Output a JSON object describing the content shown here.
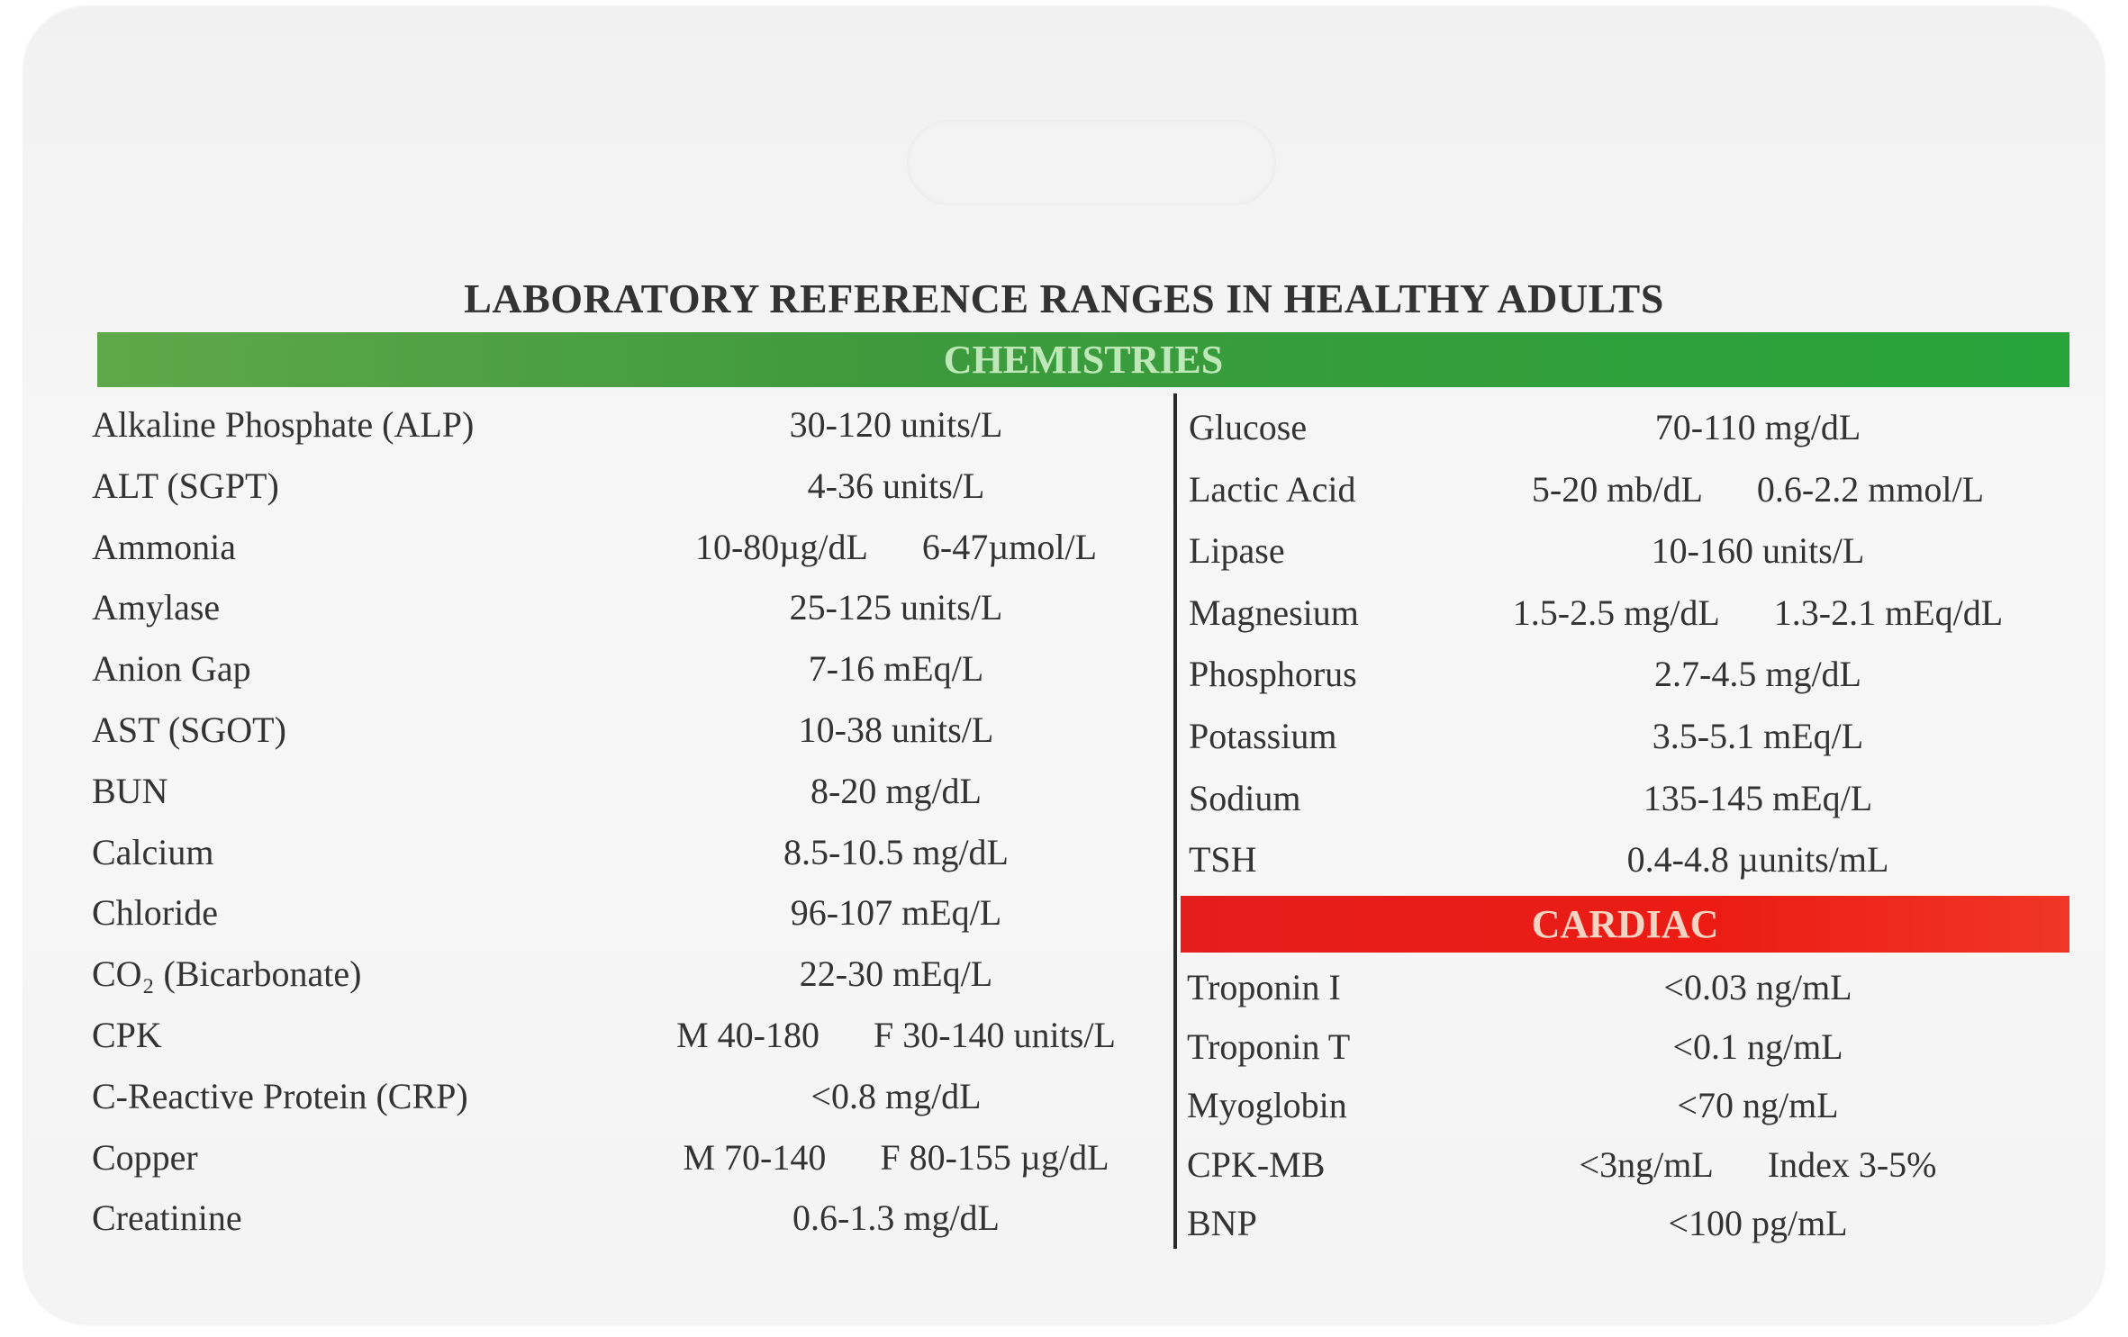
{
  "title": "LABORATORY REFERENCE RANGES IN HEALTHY ADULTS",
  "chemistries": {
    "heading": "CHEMISTRIES",
    "left": [
      {
        "name": "Alkaline Phosphate (ALP)",
        "values": [
          "30-120 units/L"
        ]
      },
      {
        "name": "ALT (SGPT)",
        "values": [
          "4-36 units/L"
        ]
      },
      {
        "name": "Ammonia",
        "values": [
          "10-80µg/dL",
          "6-47µmol/L"
        ]
      },
      {
        "name": "Amylase",
        "values": [
          "25-125 units/L"
        ]
      },
      {
        "name": "Anion Gap",
        "values": [
          "7-16 mEq/L"
        ]
      },
      {
        "name": "AST (SGOT)",
        "values": [
          "10-38 units/L"
        ]
      },
      {
        "name": "BUN",
        "values": [
          "8-20 mg/dL"
        ]
      },
      {
        "name": "Calcium",
        "values": [
          "8.5-10.5 mg/dL"
        ]
      },
      {
        "name": "Chloride",
        "values": [
          "96-107 mEq/L"
        ]
      },
      {
        "name": "CO₂ (Bicarbonate)",
        "values": [
          "22-30 mEq/L"
        ]
      },
      {
        "name": "CPK",
        "values": [
          "M 40-180",
          "F 30-140 units/L"
        ]
      },
      {
        "name": "C-Reactive Protein (CRP)",
        "values": [
          "<0.8 mg/dL"
        ]
      },
      {
        "name": "Copper",
        "values": [
          "M 70-140",
          "F 80-155 µg/dL"
        ]
      },
      {
        "name": "Creatinine",
        "values": [
          "0.6-1.3 mg/dL"
        ]
      }
    ],
    "right": [
      {
        "name": "Glucose",
        "values": [
          "70-110 mg/dL"
        ]
      },
      {
        "name": "Lactic Acid",
        "values": [
          "5-20 mb/dL",
          "0.6-2.2 mmol/L"
        ]
      },
      {
        "name": "Lipase",
        "values": [
          "10-160 units/L"
        ]
      },
      {
        "name": "Magnesium",
        "values": [
          "1.5-2.5 mg/dL",
          "1.3-2.1 mEq/dL"
        ]
      },
      {
        "name": "Phosphorus",
        "values": [
          "2.7-4.5 mg/dL"
        ]
      },
      {
        "name": "Potassium",
        "values": [
          "3.5-5.1 mEq/L"
        ]
      },
      {
        "name": "Sodium",
        "values": [
          "135-145 mEq/L"
        ]
      },
      {
        "name": "TSH",
        "values": [
          "0.4-4.8 µunits/mL"
        ]
      }
    ]
  },
  "cardiac": {
    "heading": "CARDIAC",
    "rows": [
      {
        "name": "Troponin I",
        "values": [
          "<0.03 ng/mL"
        ]
      },
      {
        "name": "Troponin T",
        "values": [
          "<0.1 ng/mL"
        ]
      },
      {
        "name": "Myoglobin",
        "values": [
          "<70 ng/mL"
        ]
      },
      {
        "name": "CPK-MB",
        "values": [
          "<3ng/mL",
          "Index 3-5%"
        ]
      },
      {
        "name": "BNP",
        "values": [
          "<100 pg/mL"
        ]
      }
    ]
  }
}
